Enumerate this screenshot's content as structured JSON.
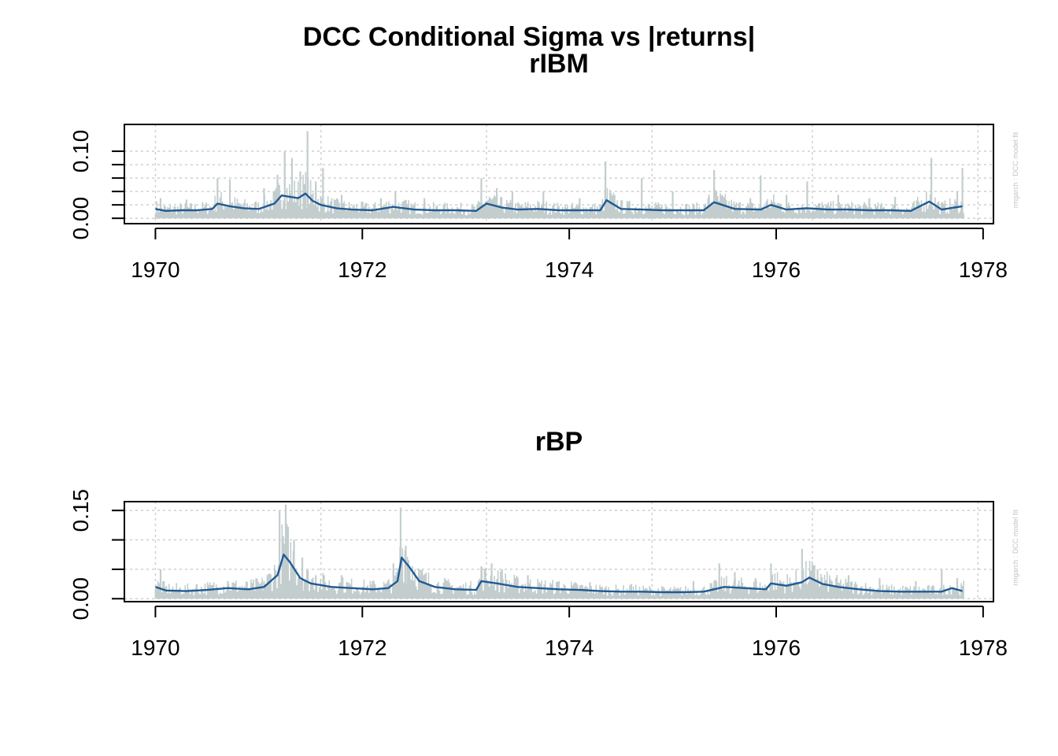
{
  "title": "DCC Conditional Sigma vs |returns|",
  "colors": {
    "sigma_line": "#1f5a94",
    "abs_returns": "#c3cdcd",
    "grid": "#cfcfcf",
    "axis": "#000000",
    "watermark": "#c4c4c4"
  },
  "chart_data": [
    {
      "type": "line",
      "title": "rIBM",
      "watermark": "rmgarch : DCC model fit",
      "xlim": [
        1969.7,
        1978.1
      ],
      "ylim": [
        -0.008,
        0.14
      ],
      "x_ticks": [
        1970,
        1972,
        1974,
        1976,
        1978
      ],
      "x_tick_labels": [
        "1970",
        "1972",
        "1974",
        "1976",
        "1978"
      ],
      "y_ticks": [
        0.0,
        0.02,
        0.04,
        0.06,
        0.08,
        0.1
      ],
      "y_tick_labels": [
        "0.00",
        "",
        "",
        "",
        "",
        "0.10"
      ],
      "x_grid": [
        1970,
        1971.6,
        1973.2,
        1974.8,
        1976.35,
        1977.95
      ],
      "y_grid": [
        0.0,
        0.02,
        0.04,
        0.06,
        0.08,
        0.1
      ],
      "series": [
        {
          "role": "abs_returns",
          "spikes": [
            [
              1970.05,
              0.03
            ],
            [
              1970.3,
              0.028
            ],
            [
              1970.6,
              0.06
            ],
            [
              1970.72,
              0.058
            ],
            [
              1971.05,
              0.045
            ],
            [
              1971.18,
              0.065
            ],
            [
              1971.25,
              0.1
            ],
            [
              1971.32,
              0.09
            ],
            [
              1971.4,
              0.07
            ],
            [
              1971.47,
              0.13
            ],
            [
              1971.55,
              0.055
            ],
            [
              1971.62,
              0.075
            ],
            [
              1971.8,
              0.035
            ],
            [
              1972.18,
              0.03
            ],
            [
              1972.32,
              0.04
            ],
            [
              1972.6,
              0.03
            ],
            [
              1973.15,
              0.06
            ],
            [
              1973.3,
              0.045
            ],
            [
              1973.45,
              0.04
            ],
            [
              1973.75,
              0.04
            ],
            [
              1974.1,
              0.03
            ],
            [
              1974.35,
              0.085
            ],
            [
              1974.7,
              0.06
            ],
            [
              1975.0,
              0.04
            ],
            [
              1975.35,
              0.035
            ],
            [
              1975.4,
              0.072
            ],
            [
              1975.75,
              0.03
            ],
            [
              1975.85,
              0.064
            ],
            [
              1976.1,
              0.035
            ],
            [
              1976.3,
              0.055
            ],
            [
              1976.6,
              0.035
            ],
            [
              1976.9,
              0.03
            ],
            [
              1977.15,
              0.032
            ],
            [
              1977.5,
              0.09
            ],
            [
              1977.75,
              0.04
            ],
            [
              1977.8,
              0.075
            ]
          ]
        },
        {
          "role": "sigma",
          "x": [
            1970.0,
            1970.1,
            1970.25,
            1970.4,
            1970.55,
            1970.6,
            1970.72,
            1970.85,
            1971.0,
            1971.15,
            1971.22,
            1971.3,
            1971.38,
            1971.45,
            1971.52,
            1971.6,
            1971.75,
            1971.9,
            1972.1,
            1972.3,
            1972.5,
            1972.7,
            1972.9,
            1973.1,
            1973.2,
            1973.35,
            1973.5,
            1973.7,
            1973.9,
            1974.1,
            1974.3,
            1974.36,
            1974.5,
            1974.7,
            1974.9,
            1975.1,
            1975.3,
            1975.4,
            1975.6,
            1975.85,
            1975.95,
            1976.1,
            1976.3,
            1976.5,
            1976.7,
            1976.9,
            1977.1,
            1977.3,
            1977.48,
            1977.6,
            1977.8
          ],
          "y": [
            0.014,
            0.011,
            0.012,
            0.012,
            0.014,
            0.022,
            0.018,
            0.015,
            0.014,
            0.022,
            0.034,
            0.032,
            0.03,
            0.037,
            0.026,
            0.02,
            0.015,
            0.013,
            0.012,
            0.017,
            0.013,
            0.012,
            0.012,
            0.011,
            0.022,
            0.016,
            0.013,
            0.014,
            0.012,
            0.012,
            0.012,
            0.027,
            0.014,
            0.013,
            0.012,
            0.012,
            0.012,
            0.024,
            0.014,
            0.013,
            0.02,
            0.013,
            0.015,
            0.013,
            0.013,
            0.012,
            0.012,
            0.011,
            0.025,
            0.013,
            0.018
          ]
        }
      ]
    },
    {
      "type": "line",
      "title": "rBP",
      "watermark": "rmgarch : DCC model fit",
      "xlim": [
        1969.7,
        1978.1
      ],
      "ylim": [
        -0.005,
        0.165
      ],
      "x_ticks": [
        1970,
        1972,
        1974,
        1976,
        1978
      ],
      "x_tick_labels": [
        "1970",
        "1972",
        "1974",
        "1976",
        "1978"
      ],
      "y_ticks": [
        0.0,
        0.05,
        0.1,
        0.15
      ],
      "y_tick_labels": [
        "0.00",
        "",
        "",
        "0.15"
      ],
      "x_grid": [
        1970,
        1971.6,
        1973.2,
        1974.8,
        1976.35,
        1977.95
      ],
      "y_grid": [
        0.0,
        0.05,
        0.1,
        0.15
      ],
      "series": [
        {
          "role": "abs_returns",
          "spikes": [
            [
              1970.05,
              0.05
            ],
            [
              1970.4,
              0.025
            ],
            [
              1970.7,
              0.03
            ],
            [
              1971.05,
              0.03
            ],
            [
              1971.2,
              0.15
            ],
            [
              1971.26,
              0.16
            ],
            [
              1971.34,
              0.1
            ],
            [
              1971.42,
              0.07
            ],
            [
              1971.55,
              0.04
            ],
            [
              1971.8,
              0.04
            ],
            [
              1972.1,
              0.03
            ],
            [
              1972.3,
              0.06
            ],
            [
              1972.37,
              0.155
            ],
            [
              1972.42,
              0.09
            ],
            [
              1972.55,
              0.05
            ],
            [
              1973.15,
              0.055
            ],
            [
              1973.25,
              0.06
            ],
            [
              1973.35,
              0.05
            ],
            [
              1973.6,
              0.04
            ],
            [
              1973.9,
              0.03
            ],
            [
              1974.2,
              0.028
            ],
            [
              1974.6,
              0.025
            ],
            [
              1975.2,
              0.03
            ],
            [
              1975.45,
              0.06
            ],
            [
              1975.6,
              0.045
            ],
            [
              1975.8,
              0.035
            ],
            [
              1975.95,
              0.06
            ],
            [
              1976.25,
              0.085
            ],
            [
              1976.4,
              0.05
            ],
            [
              1976.7,
              0.04
            ],
            [
              1977.0,
              0.035
            ],
            [
              1977.35,
              0.03
            ],
            [
              1977.6,
              0.05
            ],
            [
              1977.75,
              0.035
            ]
          ]
        },
        {
          "role": "sigma",
          "x": [
            1970.0,
            1970.1,
            1970.3,
            1970.5,
            1970.7,
            1970.9,
            1971.05,
            1971.18,
            1971.24,
            1971.3,
            1971.4,
            1971.5,
            1971.7,
            1971.9,
            1972.1,
            1972.25,
            1972.34,
            1972.38,
            1972.45,
            1972.55,
            1972.7,
            1972.9,
            1973.1,
            1973.15,
            1973.3,
            1973.5,
            1973.7,
            1973.9,
            1974.1,
            1974.3,
            1974.5,
            1974.7,
            1974.9,
            1975.1,
            1975.3,
            1975.5,
            1975.7,
            1975.9,
            1975.95,
            1976.1,
            1976.25,
            1976.32,
            1976.45,
            1976.6,
            1976.8,
            1977.0,
            1977.2,
            1977.4,
            1977.6,
            1977.7,
            1977.8
          ],
          "y": [
            0.02,
            0.014,
            0.013,
            0.015,
            0.018,
            0.016,
            0.02,
            0.04,
            0.075,
            0.062,
            0.035,
            0.026,
            0.02,
            0.018,
            0.016,
            0.018,
            0.03,
            0.07,
            0.055,
            0.03,
            0.02,
            0.016,
            0.015,
            0.03,
            0.026,
            0.02,
            0.018,
            0.016,
            0.015,
            0.013,
            0.012,
            0.012,
            0.011,
            0.011,
            0.012,
            0.02,
            0.018,
            0.016,
            0.026,
            0.022,
            0.028,
            0.036,
            0.025,
            0.02,
            0.016,
            0.013,
            0.012,
            0.012,
            0.012,
            0.018,
            0.013
          ]
        }
      ]
    }
  ]
}
